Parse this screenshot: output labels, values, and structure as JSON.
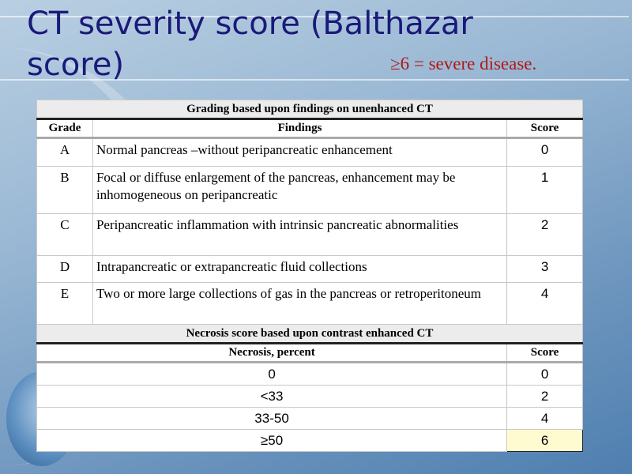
{
  "title": "CT severity score (Balthazar score)",
  "note": "≥6  = severe disease.",
  "grading": {
    "section_title": "Grading based upon findings on unenhanced CT",
    "headers": [
      "Grade",
      "Findings",
      "Score"
    ],
    "rows": [
      {
        "grade": "A",
        "findings": "Normal pancreas –without peripancreatic enhancement",
        "score": "0"
      },
      {
        "grade": "B",
        "findings": "Focal or diffuse  enlargement of the pancreas, enhancement may be inhomogeneous on peripancreatic",
        "score": "1"
      },
      {
        "grade": "C",
        "findings": "Peripancreatic inflammation with intrinsic pancreatic abnormalities",
        "score": "2"
      },
      {
        "grade": "D",
        "findings": "Intrapancreatic or extrapancreatic fluid collections",
        "score": "3"
      },
      {
        "grade": "E",
        "findings": "Two or more large collections of gas in the pancreas or retroperitoneum",
        "score": "4"
      }
    ]
  },
  "necrosis": {
    "section_title": "Necrosis score based upon contrast enhanced CT",
    "headers": [
      "Necrosis, percent",
      "Score"
    ],
    "rows": [
      {
        "percent": "0",
        "score": "0"
      },
      {
        "percent": "<33",
        "score": "2"
      },
      {
        "percent": "33-50",
        "score": "4"
      },
      {
        "percent": "≥50",
        "score": "6"
      }
    ],
    "highlight_color": "#fffbd0"
  }
}
